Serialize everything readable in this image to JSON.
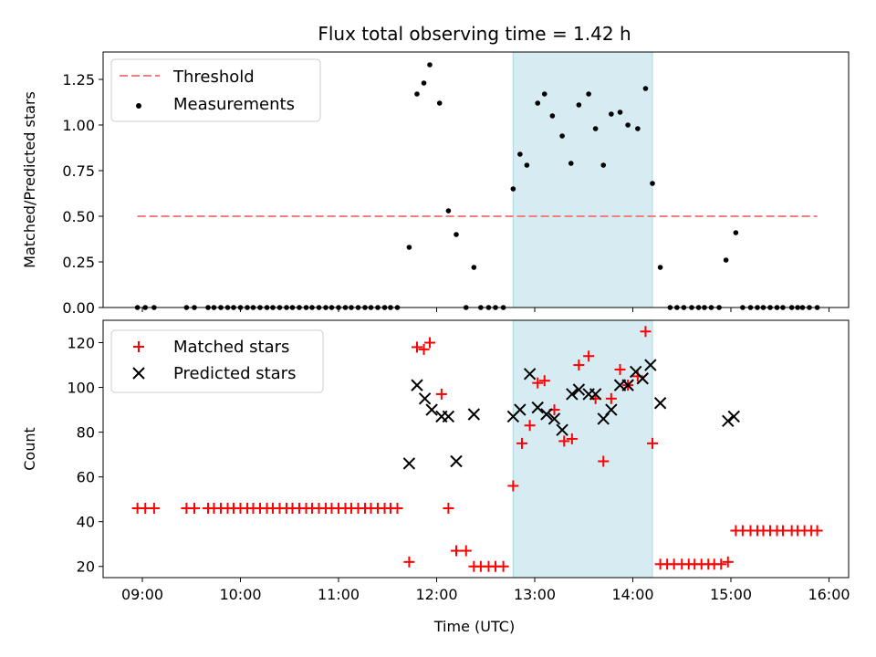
{
  "chart_data": [
    {
      "type": "scatter",
      "title": "Flux total observing time = 1.42 h",
      "ylabel": "Matched/Predicted stars",
      "xlim": [
        8.6,
        16.2
      ],
      "ylim": [
        0,
        1.4
      ],
      "yticks": [
        "0.00",
        "0.25",
        "0.50",
        "0.75",
        "1.00",
        "1.25"
      ],
      "legend": {
        "placement": "top-left",
        "entries": [
          "Threshold",
          "Measurements"
        ]
      },
      "threshold": {
        "name": "Threshold",
        "y": 0.5,
        "x": [
          8.95,
          15.88
        ],
        "color": "#f07f7f"
      },
      "highlight_span": {
        "x": [
          12.78,
          14.2
        ],
        "color": "#add8e6"
      },
      "series": [
        {
          "name": "Measurements",
          "color": "#000000",
          "points": [
            [
              8.95,
              0
            ],
            [
              9.03,
              0
            ],
            [
              9.12,
              0
            ],
            [
              9.45,
              0
            ],
            [
              9.53,
              0
            ],
            [
              9.67,
              0
            ],
            [
              9.73,
              0
            ],
            [
              9.8,
              0
            ],
            [
              9.87,
              0
            ],
            [
              9.93,
              0
            ],
            [
              10.0,
              0
            ],
            [
              10.07,
              0
            ],
            [
              10.13,
              0
            ],
            [
              10.2,
              0
            ],
            [
              10.27,
              0
            ],
            [
              10.33,
              0
            ],
            [
              10.4,
              0
            ],
            [
              10.47,
              0
            ],
            [
              10.53,
              0
            ],
            [
              10.6,
              0
            ],
            [
              10.67,
              0
            ],
            [
              10.73,
              0
            ],
            [
              10.8,
              0
            ],
            [
              10.87,
              0
            ],
            [
              10.93,
              0
            ],
            [
              11.0,
              0
            ],
            [
              11.07,
              0
            ],
            [
              11.13,
              0
            ],
            [
              11.2,
              0
            ],
            [
              11.27,
              0
            ],
            [
              11.33,
              0
            ],
            [
              11.4,
              0
            ],
            [
              11.47,
              0
            ],
            [
              11.53,
              0
            ],
            [
              11.6,
              0
            ],
            [
              11.72,
              0.33
            ],
            [
              11.8,
              1.17
            ],
            [
              11.87,
              1.23
            ],
            [
              11.93,
              1.33
            ],
            [
              12.03,
              1.12
            ],
            [
              12.12,
              0.53
            ],
            [
              12.2,
              0.4
            ],
            [
              12.3,
              0
            ],
            [
              12.38,
              0.22
            ],
            [
              12.45,
              0
            ],
            [
              12.53,
              0
            ],
            [
              12.6,
              0
            ],
            [
              12.68,
              0
            ],
            [
              12.78,
              0.65
            ],
            [
              12.85,
              0.84
            ],
            [
              12.92,
              0.78
            ],
            [
              13.03,
              1.12
            ],
            [
              13.1,
              1.17
            ],
            [
              13.18,
              1.05
            ],
            [
              13.28,
              0.94
            ],
            [
              13.37,
              0.79
            ],
            [
              13.45,
              1.11
            ],
            [
              13.55,
              1.17
            ],
            [
              13.62,
              0.98
            ],
            [
              13.7,
              0.78
            ],
            [
              13.78,
              1.06
            ],
            [
              13.87,
              1.07
            ],
            [
              13.95,
              1.0
            ],
            [
              14.05,
              0.98
            ],
            [
              14.13,
              1.2
            ],
            [
              14.2,
              0.68
            ],
            [
              14.28,
              0.22
            ],
            [
              14.38,
              0
            ],
            [
              14.45,
              0
            ],
            [
              14.52,
              0
            ],
            [
              14.6,
              0
            ],
            [
              14.67,
              0
            ],
            [
              14.73,
              0
            ],
            [
              14.8,
              0
            ],
            [
              14.88,
              0
            ],
            [
              14.95,
              0.26
            ],
            [
              15.05,
              0.41
            ],
            [
              15.12,
              0
            ],
            [
              15.2,
              0
            ],
            [
              15.27,
              0
            ],
            [
              15.33,
              0
            ],
            [
              15.4,
              0
            ],
            [
              15.47,
              0
            ],
            [
              15.53,
              0
            ],
            [
              15.62,
              0
            ],
            [
              15.68,
              0
            ],
            [
              15.73,
              0
            ],
            [
              15.8,
              0
            ],
            [
              15.88,
              0
            ]
          ]
        }
      ]
    },
    {
      "type": "scatter",
      "xlabel": "Time (UTC)",
      "ylabel": "Count",
      "xlim": [
        8.6,
        16.2
      ],
      "ylim": [
        15,
        130
      ],
      "xticks": [
        {
          "v": 9,
          "label": "09:00"
        },
        {
          "v": 10,
          "label": "10:00"
        },
        {
          "v": 11,
          "label": "11:00"
        },
        {
          "v": 12,
          "label": "12:00"
        },
        {
          "v": 13,
          "label": "13:00"
        },
        {
          "v": 14,
          "label": "14:00"
        },
        {
          "v": 15,
          "label": "15:00"
        },
        {
          "v": 16,
          "label": "16:00"
        }
      ],
      "yticks": [
        "20",
        "40",
        "60",
        "80",
        "100",
        "120"
      ],
      "legend": {
        "placement": "top-left",
        "entries": [
          "Matched stars",
          "Predicted stars"
        ]
      },
      "highlight_span": {
        "x": [
          12.78,
          14.2
        ],
        "color": "#add8e6"
      },
      "series": [
        {
          "name": "Matched stars",
          "marker": "plus",
          "color": "#ff0000",
          "points": [
            [
              8.95,
              46
            ],
            [
              9.03,
              46
            ],
            [
              9.12,
              46
            ],
            [
              9.45,
              46
            ],
            [
              9.53,
              46
            ],
            [
              9.67,
              46
            ],
            [
              9.73,
              46
            ],
            [
              9.8,
              46
            ],
            [
              9.87,
              46
            ],
            [
              9.93,
              46
            ],
            [
              10.0,
              46
            ],
            [
              10.07,
              46
            ],
            [
              10.13,
              46
            ],
            [
              10.2,
              46
            ],
            [
              10.27,
              46
            ],
            [
              10.33,
              46
            ],
            [
              10.4,
              46
            ],
            [
              10.47,
              46
            ],
            [
              10.53,
              46
            ],
            [
              10.6,
              46
            ],
            [
              10.67,
              46
            ],
            [
              10.73,
              46
            ],
            [
              10.8,
              46
            ],
            [
              10.87,
              46
            ],
            [
              10.93,
              46
            ],
            [
              11.0,
              46
            ],
            [
              11.07,
              46
            ],
            [
              11.13,
              46
            ],
            [
              11.2,
              46
            ],
            [
              11.27,
              46
            ],
            [
              11.33,
              46
            ],
            [
              11.4,
              46
            ],
            [
              11.47,
              46
            ],
            [
              11.53,
              46
            ],
            [
              11.6,
              46
            ],
            [
              11.72,
              22
            ],
            [
              11.8,
              118
            ],
            [
              11.87,
              117
            ],
            [
              11.93,
              120
            ],
            [
              12.05,
              97
            ],
            [
              12.12,
              46
            ],
            [
              12.2,
              27
            ],
            [
              12.3,
              27
            ],
            [
              12.38,
              20
            ],
            [
              12.45,
              20
            ],
            [
              12.53,
              20
            ],
            [
              12.6,
              20
            ],
            [
              12.68,
              20
            ],
            [
              12.78,
              56
            ],
            [
              12.87,
              75
            ],
            [
              12.95,
              83
            ],
            [
              13.03,
              102
            ],
            [
              13.1,
              103
            ],
            [
              13.2,
              90
            ],
            [
              13.3,
              76
            ],
            [
              13.38,
              77
            ],
            [
              13.45,
              110
            ],
            [
              13.55,
              114
            ],
            [
              13.62,
              95
            ],
            [
              13.7,
              67
            ],
            [
              13.78,
              95
            ],
            [
              13.87,
              108
            ],
            [
              13.95,
              101
            ],
            [
              14.05,
              105
            ],
            [
              14.13,
              125
            ],
            [
              14.2,
              75
            ],
            [
              14.28,
              21
            ],
            [
              14.35,
              21
            ],
            [
              14.42,
              21
            ],
            [
              14.5,
              21
            ],
            [
              14.57,
              21
            ],
            [
              14.63,
              21
            ],
            [
              14.7,
              21
            ],
            [
              14.77,
              21
            ],
            [
              14.83,
              21
            ],
            [
              14.9,
              21
            ],
            [
              14.97,
              22
            ],
            [
              15.05,
              36
            ],
            [
              15.12,
              36
            ],
            [
              15.2,
              36
            ],
            [
              15.27,
              36
            ],
            [
              15.33,
              36
            ],
            [
              15.4,
              36
            ],
            [
              15.47,
              36
            ],
            [
              15.53,
              36
            ],
            [
              15.62,
              36
            ],
            [
              15.68,
              36
            ],
            [
              15.75,
              36
            ],
            [
              15.82,
              36
            ],
            [
              15.88,
              36
            ]
          ]
        },
        {
          "name": "Predicted stars",
          "marker": "x",
          "color": "#000000",
          "points": [
            [
              11.72,
              66
            ],
            [
              11.8,
              101
            ],
            [
              11.88,
              95
            ],
            [
              11.95,
              90
            ],
            [
              12.05,
              87
            ],
            [
              12.12,
              87
            ],
            [
              12.2,
              67
            ],
            [
              12.38,
              88
            ],
            [
              12.78,
              87
            ],
            [
              12.85,
              90
            ],
            [
              12.95,
              106
            ],
            [
              13.03,
              91
            ],
            [
              13.12,
              88
            ],
            [
              13.2,
              86
            ],
            [
              13.28,
              81
            ],
            [
              13.38,
              97
            ],
            [
              13.45,
              99
            ],
            [
              13.55,
              97
            ],
            [
              13.62,
              97
            ],
            [
              13.7,
              86
            ],
            [
              13.78,
              90
            ],
            [
              13.87,
              101
            ],
            [
              13.95,
              101
            ],
            [
              14.03,
              107
            ],
            [
              14.1,
              104
            ],
            [
              14.18,
              110
            ],
            [
              14.28,
              93
            ],
            [
              14.97,
              85
            ],
            [
              15.03,
              87
            ]
          ]
        }
      ]
    }
  ]
}
